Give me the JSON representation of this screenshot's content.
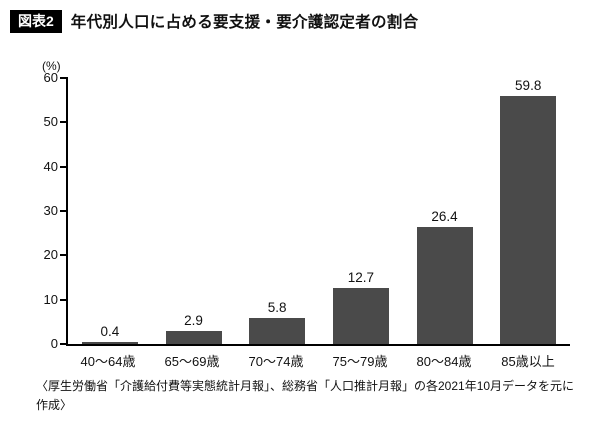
{
  "header": {
    "badge": "図表2",
    "title": "年代別人口に占める要支援・要介護認定者の割合"
  },
  "footer": {
    "source": "〈厚生労働省「介護給付費等実態統計月報」、総務省「人口推計月報」の各2021年10月データを元に作成〉"
  },
  "chart_data": {
    "type": "bar",
    "title": "年代別人口に占める要支援・要介護認定者の割合",
    "unit": "(%)",
    "categories": [
      "40〜64歳",
      "65〜69歳",
      "70〜74歳",
      "75〜79歳",
      "80〜84歳",
      "85歳以上"
    ],
    "values": [
      0.4,
      2.9,
      5.8,
      12.7,
      26.4,
      59.8
    ],
    "ylim": [
      0,
      60
    ],
    "yticks": [
      0,
      10,
      20,
      30,
      40,
      50,
      60
    ],
    "bar_color": "#4a4a4a",
    "axis_color": "#000000",
    "grid": false,
    "legend": false
  }
}
